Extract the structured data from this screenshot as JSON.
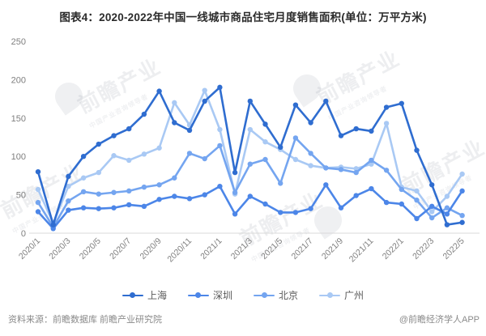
{
  "title": "图表4：2020-2022年中国一线城市商品住宅月度销售面积(单位：万平方米)",
  "footer": {
    "source": "资料来源：前瞻数据库 前瞻产业研究院",
    "brand": "@前瞻经济学人APP"
  },
  "watermark": {
    "text": "前瞻产业",
    "subtext": "中国产业咨询领导者"
  },
  "chart_data": {
    "type": "line",
    "title": "图表4：2020-2022年中国一线城市商品住宅月度销售面积(单位：万平方米)",
    "unit": "万平方米",
    "x": [
      "2020/1",
      "2020/2",
      "2020/3",
      "2020/4",
      "2020/5",
      "2020/6",
      "2020/7",
      "2020/8",
      "2020/9",
      "2020/10",
      "2020/11",
      "2020/12",
      "2021/1",
      "2021/2",
      "2021/3",
      "2021/4",
      "2021/5",
      "2021/6",
      "2021/7",
      "2021/8",
      "2021/9",
      "2021/10",
      "2021/11",
      "2021/12",
      "2022/1",
      "2022/2",
      "2022/3",
      "2022/4",
      "2022/5"
    ],
    "x_tick_every": 2,
    "yticks": [
      0,
      50,
      100,
      150,
      200,
      250
    ],
    "ylim": [
      0,
      250
    ],
    "grid": false,
    "legend_position": "bottom",
    "axis_color": "#d9d9d9",
    "tick_label_color": "#7f7f7f",
    "series": [
      {
        "name": "上海",
        "color": "#2F6DD0",
        "values": [
          80,
          11,
          74,
          100,
          116,
          127,
          136,
          155,
          185,
          144,
          134,
          172,
          190,
          79,
          172,
          142,
          112,
          167,
          144,
          172,
          127,
          136,
          133,
          164,
          169,
          108,
          63,
          11,
          14
        ]
      },
      {
        "name": "深圳",
        "color": "#4C86E8",
        "values": [
          28,
          6,
          30,
          33,
          32,
          33,
          37,
          35,
          44,
          48,
          45,
          50,
          61,
          25,
          48,
          38,
          27,
          27,
          32,
          63,
          33,
          49,
          58,
          40,
          38,
          19,
          35,
          25,
          55
        ]
      },
      {
        "name": "北京",
        "color": "#74A5F0",
        "values": [
          40,
          8,
          42,
          54,
          51,
          53,
          55,
          60,
          63,
          72,
          104,
          97,
          114,
          53,
          90,
          96,
          65,
          124,
          104,
          85,
          83,
          79,
          95,
          82,
          57,
          43,
          20,
          33,
          23
        ]
      },
      {
        "name": "广州",
        "color": "#A9C9F4",
        "values": [
          57,
          13,
          61,
          72,
          79,
          101,
          95,
          103,
          111,
          170,
          141,
          186,
          135,
          51,
          135,
          119,
          109,
          96,
          88,
          85,
          86,
          84,
          90,
          143,
          60,
          55,
          28,
          48,
          77
        ]
      }
    ]
  }
}
